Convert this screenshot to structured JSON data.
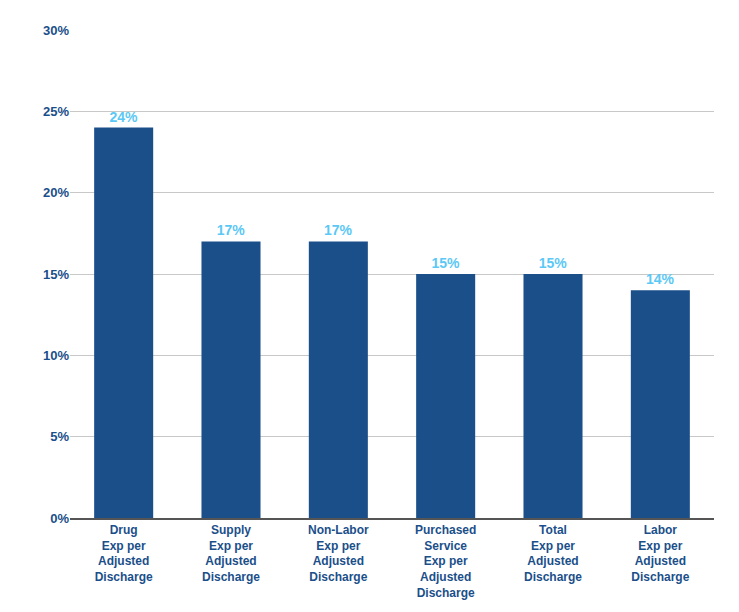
{
  "chart_data": {
    "type": "bar",
    "categories": [
      "Drug\nExp per\nAdjusted\nDischarge",
      "Supply\nExp per\nAdjusted\nDischarge",
      "Non-Labor\nExp per\nAdjusted\nDischarge",
      "Purchased\nService\nExp per\nAdjusted\nDischarge",
      "Total\nExp per\nAdjusted\nDischarge",
      "Labor\nExp per\nAdjusted\nDischarge"
    ],
    "values": [
      0.24,
      0.17,
      0.17,
      0.15,
      0.15,
      0.14
    ],
    "value_labels": [
      "24%",
      "17%",
      "17%",
      "15%",
      "15%",
      "14%"
    ],
    "data_labels": true,
    "color": "#1B4F8A",
    "ylim": [
      0,
      0.3
    ],
    "yticks": [
      {
        "value": 0.0,
        "label": "0%"
      },
      {
        "value": 0.05,
        "label": "5%"
      },
      {
        "value": 0.1,
        "label": "10%"
      },
      {
        "value": 0.15,
        "label": "15%"
      },
      {
        "value": 0.2,
        "label": "20%"
      },
      {
        "value": 0.25,
        "label": "25%"
      },
      {
        "value": 0.3,
        "label": "30%"
      }
    ],
    "grid": true
  }
}
